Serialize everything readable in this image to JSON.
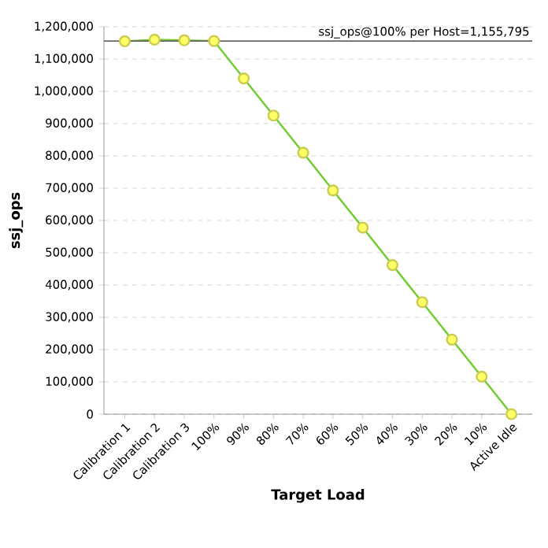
{
  "chart_data": {
    "type": "line",
    "xlabel": "Target Load",
    "ylabel": "ssj_ops",
    "categories": [
      "Calibration 1",
      "Calibration 2",
      "Calibration 3",
      "100%",
      "90%",
      "80%",
      "70%",
      "60%",
      "50%",
      "40%",
      "30%",
      "20%",
      "10%",
      "Active Idle"
    ],
    "series": [
      {
        "color": "#ffff66",
        "values": [
          1155000,
          1160000,
          1158000,
          1156000,
          1040000,
          925000,
          810000,
          693000,
          578000,
          462000,
          347000,
          231000,
          116000,
          0
        ]
      }
    ],
    "ylim": [
      0,
      1200000
    ],
    "yticks": [
      0,
      {
        "value": 100000,
        "label": "100,000"
      },
      {
        "value": 200000,
        "label": "200,000"
      },
      {
        "value": 300000,
        "label": "300,000"
      },
      {
        "value": 400000,
        "label": "400,000"
      },
      {
        "value": 500000,
        "label": "500,000"
      },
      {
        "value": 600000,
        "label": "600,000"
      },
      {
        "value": 700000,
        "label": "700,000"
      },
      {
        "value": 800000,
        "label": "800,000"
      },
      {
        "value": 900000,
        "label": "900,000"
      },
      {
        "value": 1000000,
        "label": "1,000,000"
      },
      {
        "value": 1100000,
        "label": "1,100,000"
      },
      {
        "value": 1200000,
        "label": "1,200,000"
      }
    ],
    "ref_lines": [
      {
        "axis": "y",
        "value": 1155795,
        "label": "ssj_ops@100% per Host=1,155,795",
        "color": "#666666"
      }
    ],
    "grid": "y",
    "marker": "circle",
    "line_style": "solid"
  }
}
